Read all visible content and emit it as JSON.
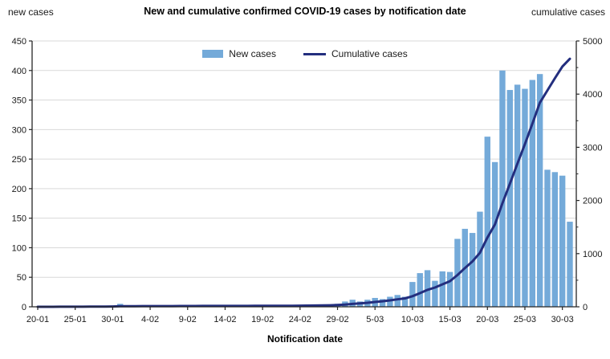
{
  "header": {
    "title": "New and cumulative confirmed COVID-19 cases by notification date",
    "left_axis_title": "new cases",
    "right_axis_title": "cumulative cases"
  },
  "legend": [
    {
      "label": "New cases",
      "type": "bar",
      "color": "#74aad9"
    },
    {
      "label": "Cumulative cases",
      "type": "line",
      "color": "#232e7e"
    }
  ],
  "colors": {
    "bar_fill": "#74aad9",
    "line_stroke": "#232e7e",
    "gridline": "#d9d9d9",
    "axis": "#262626",
    "tick_text": "#1a1a1a"
  },
  "chart_data": {
    "type": "bar",
    "title": "New and cumulative confirmed COVID-19 cases by notification date",
    "xlabel": "Notification date",
    "ylabel_left": "new cases",
    "ylabel_right": "cumulative cases",
    "ylim_left": [
      0,
      450
    ],
    "ylim_right": [
      0,
      5000
    ],
    "grid": true,
    "legend_position": "top-center",
    "x_tick_labels": [
      "20-01",
      "25-01",
      "30-01",
      "4-02",
      "9-02",
      "14-02",
      "19-02",
      "24-02",
      "29-02",
      "5-03",
      "10-03",
      "15-03",
      "20-03",
      "25-03",
      "30-03"
    ],
    "x_tick_every_days": 5,
    "left_axis_ticks": [
      0,
      50,
      100,
      150,
      200,
      250,
      300,
      350,
      400,
      450
    ],
    "right_axis_ticks": [
      0,
      1000,
      2000,
      3000,
      4000,
      5000
    ],
    "right_axis_minor_step": 500,
    "categories": [
      "20-01",
      "21-01",
      "22-01",
      "23-01",
      "24-01",
      "25-01",
      "26-01",
      "27-01",
      "28-01",
      "29-01",
      "30-01",
      "31-01",
      "1-02",
      "2-02",
      "3-02",
      "4-02",
      "5-02",
      "6-02",
      "7-02",
      "8-02",
      "9-02",
      "10-02",
      "11-02",
      "12-02",
      "13-02",
      "14-02",
      "15-02",
      "16-02",
      "17-02",
      "18-02",
      "19-02",
      "20-02",
      "21-02",
      "22-02",
      "23-02",
      "24-02",
      "25-02",
      "26-02",
      "27-02",
      "28-02",
      "29-02",
      "1-03",
      "2-03",
      "3-03",
      "4-03",
      "5-03",
      "6-03",
      "7-03",
      "8-03",
      "9-03",
      "10-03",
      "11-03",
      "12-03",
      "13-03",
      "14-03",
      "15-03",
      "16-03",
      "17-03",
      "18-03",
      "19-03",
      "20-03",
      "21-03",
      "22-03",
      "23-03",
      "24-03",
      "25-03",
      "26-03",
      "27-03",
      "28-03",
      "29-03",
      "30-03",
      "31-03"
    ],
    "series": [
      {
        "name": "New cases",
        "type": "bar",
        "axis": "left",
        "color": "#74aad9",
        "values": [
          0,
          0,
          0,
          1,
          1,
          0,
          0,
          1,
          1,
          1,
          1,
          5,
          1,
          0,
          1,
          0,
          0,
          1,
          0,
          1,
          0,
          0,
          1,
          0,
          0,
          1,
          0,
          0,
          0,
          1,
          0,
          0,
          1,
          0,
          1,
          1,
          1,
          2,
          2,
          3,
          5,
          9,
          12,
          9,
          12,
          15,
          13,
          17,
          20,
          17,
          42,
          57,
          62,
          44,
          60,
          59,
          115,
          132,
          125,
          161,
          288,
          245,
          400,
          367,
          376,
          369,
          384,
          394,
          232,
          228,
          222,
          144
        ]
      },
      {
        "name": "Cumulative cases",
        "type": "line",
        "axis": "right",
        "color": "#232e7e",
        "values": [
          0,
          0,
          0,
          1,
          2,
          2,
          2,
          3,
          4,
          5,
          6,
          11,
          12,
          12,
          13,
          13,
          13,
          14,
          14,
          15,
          15,
          15,
          16,
          16,
          16,
          17,
          17,
          17,
          17,
          18,
          18,
          18,
          19,
          19,
          20,
          21,
          22,
          24,
          26,
          29,
          34,
          43,
          55,
          64,
          76,
          91,
          104,
          121,
          141,
          158,
          200,
          257,
          319,
          363,
          423,
          482,
          597,
          729,
          854,
          1015,
          1303,
          1548,
          1948,
          2315,
          2691,
          3060,
          3444,
          3838,
          4070,
          4298,
          4520,
          4664
        ]
      }
    ]
  }
}
